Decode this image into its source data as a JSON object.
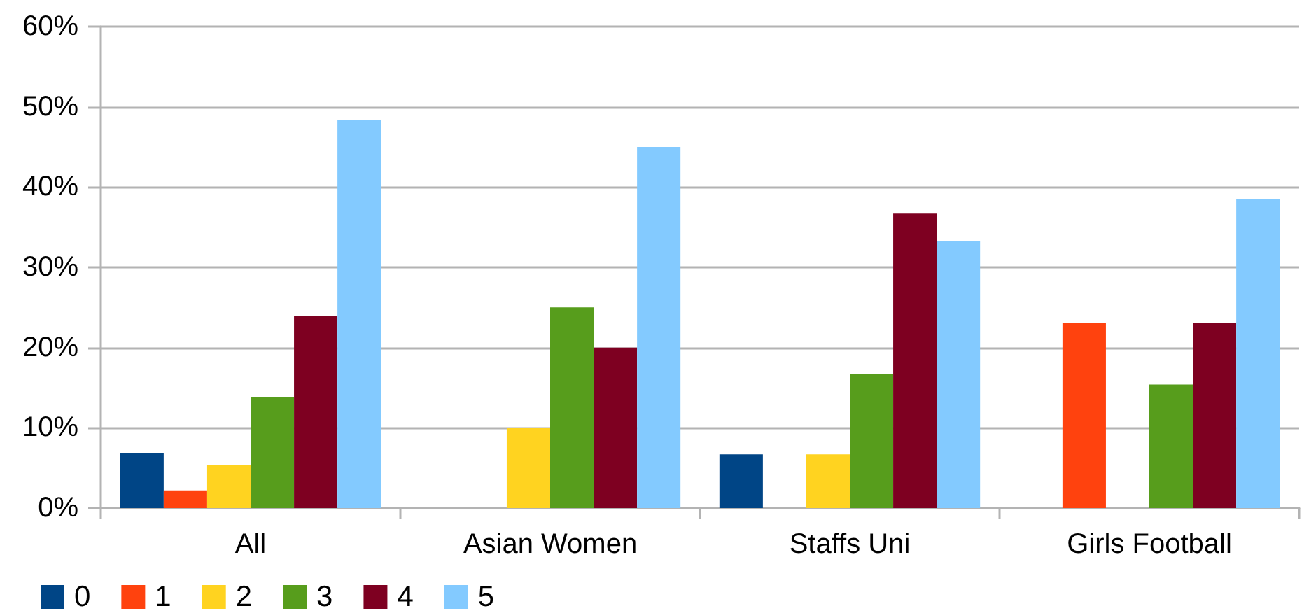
{
  "chart_data": {
    "type": "bar",
    "categories": [
      "All",
      "Asian Women",
      "Staffs Uni",
      "Girls Football"
    ],
    "series": [
      {
        "name": "0",
        "color": "#004586",
        "values": [
          6.8,
          0,
          6.7,
          0
        ]
      },
      {
        "name": "1",
        "color": "#ff420e",
        "values": [
          2.2,
          0,
          0,
          23.1
        ]
      },
      {
        "name": "2",
        "color": "#ffd320",
        "values": [
          5.4,
          10,
          6.7,
          0
        ]
      },
      {
        "name": "3",
        "color": "#579d1c",
        "values": [
          13.8,
          25,
          16.7,
          15.4
        ]
      },
      {
        "name": "4",
        "color": "#7e0021",
        "values": [
          23.9,
          20,
          36.7,
          23.1
        ]
      },
      {
        "name": "5",
        "color": "#83caff",
        "values": [
          48.4,
          45,
          33.3,
          38.5
        ]
      }
    ],
    "ylim": [
      0,
      60
    ],
    "yticks": [
      {
        "value": 0,
        "label": "0%"
      },
      {
        "value": 10,
        "label": "10%"
      },
      {
        "value": 20,
        "label": "20%"
      },
      {
        "value": 30,
        "label": "30%"
      },
      {
        "value": 40,
        "label": "40%"
      },
      {
        "value": 50,
        "label": "50%"
      },
      {
        "value": 60,
        "label": "60%"
      }
    ],
    "grid": "y",
    "legend": "bottom left"
  }
}
